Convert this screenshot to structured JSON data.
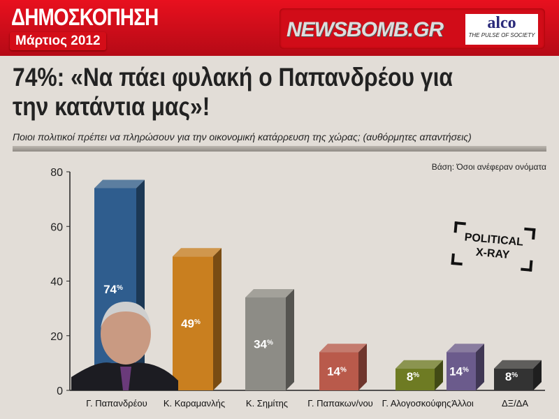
{
  "header": {
    "title": "ΔΗΜΟΣΚΟΠΗΣΗ",
    "date": "Μάρτιος 2012",
    "brand": "NEWSBOMB.GR",
    "partner": "alco",
    "partner_tagline": "THE PULSE OF SOCIETY"
  },
  "headline": "74%: «Να πάει φυλακή ο Παπανδρέου για την κατάντια μας»!",
  "stamp": {
    "line1": "POLITICAL",
    "line2": "X-RAY"
  },
  "chart_data": {
    "type": "bar",
    "title": "74%: «Να πάει φυλακή ο Παπανδρέου για την κατάντια μας»!",
    "subtitle": "Ποιοι πολιτικοί πρέπει να πληρώσουν για την οικονομική κατάρρευση της χώρας; (αυθόρμητες απαντήσεις)",
    "note": "Βάση: Όσοι ανέφεραν ονόματα",
    "categories": [
      "Γ. Παπανδρέου",
      "Κ. Καραμανλής",
      "Κ. Σημίτης",
      "Γ. Παπακων/νου",
      "Γ. Αλογοσκούφης",
      "Άλλοι",
      "ΔΞ/ΔΑ"
    ],
    "values": [
      74,
      49,
      34,
      14,
      8,
      14,
      8
    ],
    "data_labels": [
      "74",
      "49",
      "34",
      "14",
      "8",
      "14",
      "8"
    ],
    "unit": "%",
    "colors": [
      "#2f5d8e",
      "#c97f1f",
      "#8d8c86",
      "#b95a4b",
      "#6e7b23",
      "#6b5b8c",
      "#333333"
    ],
    "ylim": [
      0,
      80
    ],
    "yticks": [
      0,
      20,
      40,
      60,
      80
    ],
    "grid": false,
    "xlabel": "",
    "ylabel": ""
  }
}
